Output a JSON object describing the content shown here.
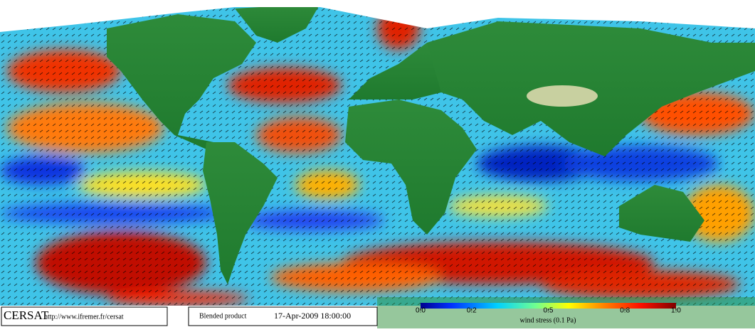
{
  "logo": {
    "name": "CERSAT",
    "url": "http://www.ifremer.fr/cersat"
  },
  "product": {
    "name": "Blended product",
    "date": "17-Apr-2009 18:00:00"
  },
  "colorbar": {
    "range": [
      0,
      1
    ],
    "ticks": [
      {
        "value": 0,
        "label": "0.0"
      },
      0.2,
      0.5,
      0.8,
      {
        "value": 1,
        "label": "1.0"
      }
    ],
    "label": "wind stress (0.1 Pa)"
  }
}
